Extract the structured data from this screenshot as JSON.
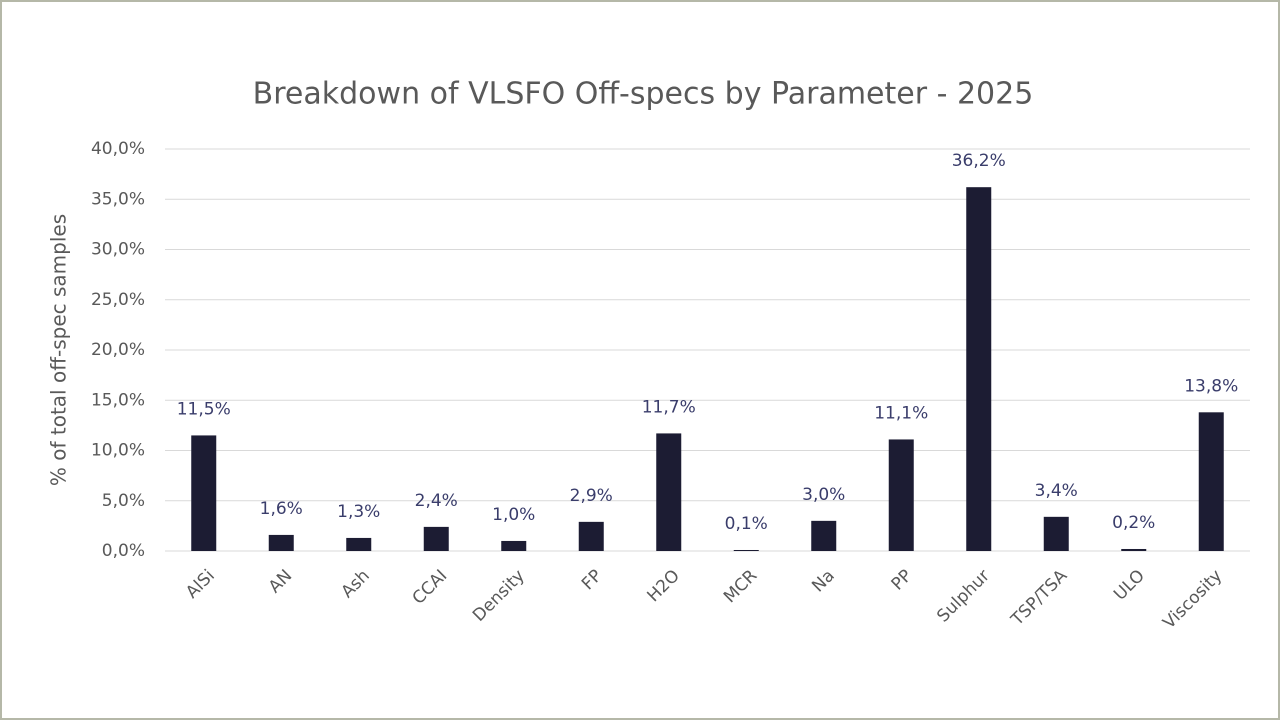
{
  "chart_data": {
    "type": "bar",
    "title": "Breakdown of VLSFO Off-specs by Parameter - 2025",
    "y_label": "% of total off-spec samples",
    "categories": [
      "AlSi",
      "AN",
      "Ash",
      "CCAI",
      "Density",
      "FP",
      "H2O",
      "MCR",
      "Na",
      "PP",
      "Sulphur",
      "TSP/TSA",
      "ULO",
      "Viscosity"
    ],
    "values": [
      11.5,
      1.6,
      1.3,
      2.4,
      1.0,
      2.9,
      11.7,
      0.1,
      3.0,
      11.1,
      36.2,
      3.4,
      0.2,
      13.8
    ],
    "value_labels": [
      "11,5%",
      "1,6%",
      "1,3%",
      "2,4%",
      "1,0%",
      "2,9%",
      "11,7%",
      "0,1%",
      "3,0%",
      "11,1%",
      "36,2%",
      "3,4%",
      "0,2%",
      "13,8%"
    ],
    "color": "#1c1c33",
    "ylim": [
      0,
      40
    ],
    "yticks": [
      {
        "value": 0,
        "label": "0,0%"
      },
      {
        "value": 5,
        "label": "5,0%"
      },
      {
        "value": 10,
        "label": "10,0%"
      },
      {
        "value": 15,
        "label": "15,0%"
      },
      {
        "value": 20,
        "label": "20,0%"
      },
      {
        "value": 25,
        "label": "25,0%"
      },
      {
        "value": 30,
        "label": "30,0%"
      },
      {
        "value": 35,
        "label": "35,0%"
      },
      {
        "value": 40,
        "label": "40,0%"
      }
    ],
    "grid": true
  }
}
